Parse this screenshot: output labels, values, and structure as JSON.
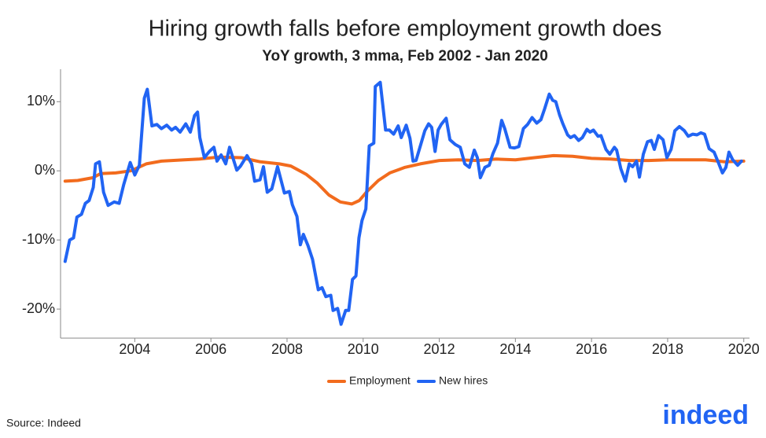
{
  "chart_data": {
    "type": "line",
    "title": "Hiring growth falls before employment growth does",
    "subtitle": "YoY growth, 3 mma, Feb 2002 - Jan 2020",
    "source": "Source: Indeed",
    "logo": "indeed",
    "xlim": [
      2002.05,
      2020.15
    ],
    "xticks": [
      2004,
      2006,
      2008,
      2010,
      2012,
      2014,
      2016,
      2018,
      2020
    ],
    "ylim": [
      -24.2,
      14.7
    ],
    "yticks": [
      {
        "value": -20,
        "label": "-20%"
      },
      {
        "value": -10,
        "label": "-10%"
      },
      {
        "value": 0,
        "label": "0%"
      },
      {
        "value": 10,
        "label": "10%"
      }
    ],
    "grid": false,
    "legend": "bottom",
    "series": [
      {
        "name": "Employment",
        "color": "#f26b1d",
        "x": [
          2002.17,
          2002.5,
          2002.9,
          2003.1,
          2003.5,
          2003.9,
          2004.3,
          2004.7,
          2005.3,
          2005.7,
          2006.2,
          2006.8,
          2007.3,
          2007.8,
          2008.1,
          2008.5,
          2008.8,
          2009.1,
          2009.4,
          2009.7,
          2009.9,
          2010.1,
          2010.4,
          2010.7,
          2011.1,
          2011.5,
          2012,
          2012.5,
          2013,
          2013.5,
          2014,
          2014.5,
          2015,
          2015.5,
          2016,
          2016.5,
          2017,
          2017.5,
          2018,
          2018.5,
          2019,
          2019.5,
          2020
        ],
        "values": [
          -1.5,
          -1.4,
          -1,
          -0.4,
          -0.3,
          0,
          1,
          1.4,
          1.6,
          1.7,
          2,
          1.9,
          1.3,
          1,
          0.7,
          -0.5,
          -1.8,
          -3.5,
          -4.5,
          -4.8,
          -4.3,
          -3,
          -1.4,
          -0.3,
          0.5,
          1,
          1.5,
          1.6,
          1.5,
          1.7,
          1.6,
          1.9,
          2.2,
          2.1,
          1.8,
          1.7,
          1.5,
          1.5,
          1.6,
          1.6,
          1.6,
          1.3,
          1.4
        ]
      },
      {
        "name": "New hires",
        "color": "#2164f3",
        "x": [
          2002.17,
          2002.29,
          2002.39,
          2002.48,
          2002.6,
          2002.7,
          2002.8,
          2002.91,
          2002.97,
          2003.07,
          2003.18,
          2003.3,
          2003.46,
          2003.59,
          2003.71,
          2003.88,
          2004,
          2004.12,
          2004.25,
          2004.33,
          2004.45,
          2004.58,
          2004.7,
          2004.84,
          2004.97,
          2005.07,
          2005.19,
          2005.34,
          2005.46,
          2005.57,
          2005.65,
          2005.71,
          2005.83,
          2005.96,
          2006.08,
          2006.16,
          2006.27,
          2006.39,
          2006.49,
          2006.68,
          2006.78,
          2006.95,
          2007.07,
          2007.15,
          2007.29,
          2007.38,
          2007.48,
          2007.6,
          2007.75,
          2007.93,
          2008.06,
          2008.14,
          2008.26,
          2008.35,
          2008.43,
          2008.55,
          2008.67,
          2008.82,
          2008.92,
          2009.02,
          2009.15,
          2009.21,
          2009.33,
          2009.42,
          2009.54,
          2009.62,
          2009.72,
          2009.81,
          2009.89,
          2009.97,
          2010.07,
          2010.16,
          2010.28,
          2010.32,
          2010.45,
          2010.59,
          2010.69,
          2010.8,
          2010.92,
          2011,
          2011.13,
          2011.23,
          2011.31,
          2011.39,
          2011.54,
          2011.62,
          2011.72,
          2011.8,
          2011.89,
          2011.97,
          2012.05,
          2012.18,
          2012.28,
          2012.42,
          2012.55,
          2012.67,
          2012.79,
          2012.92,
          2013,
          2013.08,
          2013.2,
          2013.31,
          2013.41,
          2013.53,
          2013.64,
          2013.72,
          2013.86,
          2013.97,
          2014.09,
          2014.21,
          2014.32,
          2014.44,
          2014.56,
          2014.67,
          2014.77,
          2014.89,
          2014.98,
          2015.06,
          2015.16,
          2015.24,
          2015.37,
          2015.45,
          2015.55,
          2015.66,
          2015.76,
          2015.88,
          2015.96,
          2016.05,
          2016.17,
          2016.25,
          2016.38,
          2016.48,
          2016.6,
          2016.66,
          2016.77,
          2016.89,
          2016.99,
          2017.08,
          2017.18,
          2017.26,
          2017.36,
          2017.47,
          2017.57,
          2017.65,
          2017.76,
          2017.88,
          2017.98,
          2018.09,
          2018.19,
          2018.31,
          2018.44,
          2018.54,
          2018.66,
          2018.77,
          2018.87,
          2018.97,
          2019.09,
          2019.22,
          2019.34,
          2019.44,
          2019.53,
          2019.61,
          2019.71,
          2019.84,
          2019.94
        ],
        "values": [
          -13.1,
          -10,
          -9.7,
          -6.7,
          -6.3,
          -4.7,
          -4.3,
          -2.4,
          1,
          1.3,
          -3.1,
          -5,
          -4.5,
          -4.7,
          -2,
          1.2,
          -0.6,
          0.8,
          10.5,
          11.8,
          6.5,
          6.7,
          6.1,
          6.6,
          5.9,
          6.3,
          5.6,
          6.8,
          5.6,
          8,
          8.5,
          4.8,
          1.9,
          2.8,
          3.4,
          1.4,
          2.3,
          1,
          3.4,
          0.1,
          0.7,
          2.2,
          1,
          -1.5,
          -1.3,
          0.6,
          -3.1,
          -2.6,
          0.6,
          -3.2,
          -3,
          -4.9,
          -6.6,
          -10.7,
          -9.2,
          -10.8,
          -12.8,
          -17.2,
          -16.9,
          -18.2,
          -18,
          -20.2,
          -19.9,
          -22.2,
          -20.2,
          -20.2,
          -15.7,
          -15.2,
          -9.7,
          -7.2,
          -5.5,
          3.6,
          4,
          12.2,
          12.8,
          5.9,
          5.9,
          5.3,
          6.5,
          4.8,
          6.6,
          4.7,
          1.4,
          1.5,
          4.3,
          5.8,
          6.8,
          6.3,
          2.8,
          5.9,
          6.7,
          7.6,
          4.5,
          3.8,
          3.4,
          1,
          0.5,
          3,
          1.9,
          -1,
          0.5,
          0.8,
          2.5,
          4,
          7.3,
          6.1,
          3.4,
          3.3,
          3.5,
          6.1,
          6.7,
          7.7,
          6.9,
          7.4,
          9,
          11.1,
          10.2,
          10,
          8.1,
          6.9,
          5.2,
          4.8,
          5.1,
          4.4,
          4.8,
          6,
          5.6,
          5.9,
          5,
          5.1,
          3.1,
          2.4,
          3.4,
          3,
          0.3,
          -1.5,
          1,
          0.6,
          1.4,
          -0.9,
          2.4,
          4.2,
          4.4,
          3.1,
          5.1,
          4.5,
          1.9,
          3.1,
          5.8,
          6.4,
          5.8,
          5,
          5.3,
          5.2,
          5.5,
          5.3,
          3.2,
          2.7,
          1.1,
          -0.3,
          0.5,
          2.7,
          1.6,
          0.8,
          1.4
        ]
      }
    ]
  }
}
